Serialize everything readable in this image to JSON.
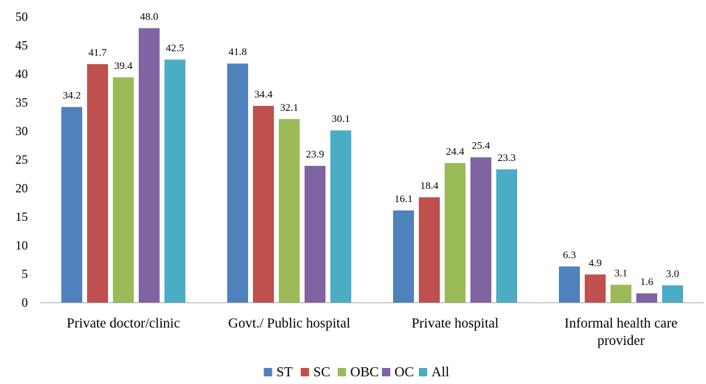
{
  "chart_data": {
    "type": "bar",
    "title": "",
    "xlabel": "",
    "ylabel": "",
    "ylim": [
      0,
      50
    ],
    "yticks": [
      0,
      5,
      10,
      15,
      20,
      25,
      30,
      35,
      40,
      45,
      50
    ],
    "grid": false,
    "legend_position": "bottom",
    "categories": [
      [
        "Private doctor/clinic"
      ],
      [
        "Govt./ Public hospital"
      ],
      [
        "Private hospital"
      ],
      [
        "Informal health care",
        "provider"
      ]
    ],
    "series": [
      {
        "name": "ST",
        "color": "#4F81BD",
        "values": [
          34.2,
          41.8,
          16.1,
          6.3
        ],
        "labels": [
          "34.2",
          "41.8",
          "16.1",
          "6.3"
        ]
      },
      {
        "name": "SC",
        "color": "#C0504D",
        "values": [
          41.7,
          34.4,
          18.4,
          4.9
        ],
        "labels": [
          "41.7",
          "34.4",
          "18.4",
          "4.9"
        ]
      },
      {
        "name": "OBC",
        "color": "#9BBB59",
        "values": [
          39.4,
          32.1,
          24.4,
          3.1
        ],
        "labels": [
          "39.4",
          "32.1",
          "24.4",
          "3.1"
        ]
      },
      {
        "name": "OC",
        "color": "#8064A2",
        "values": [
          48.0,
          23.9,
          25.4,
          1.6
        ],
        "labels": [
          "48.0",
          "23.9",
          "25.4",
          "1.6"
        ]
      },
      {
        "name": "All",
        "color": "#4BACC6",
        "values": [
          42.5,
          30.1,
          23.3,
          3.0
        ],
        "labels": [
          "42.5",
          "30.1",
          "23.3",
          "3.0"
        ]
      }
    ]
  }
}
